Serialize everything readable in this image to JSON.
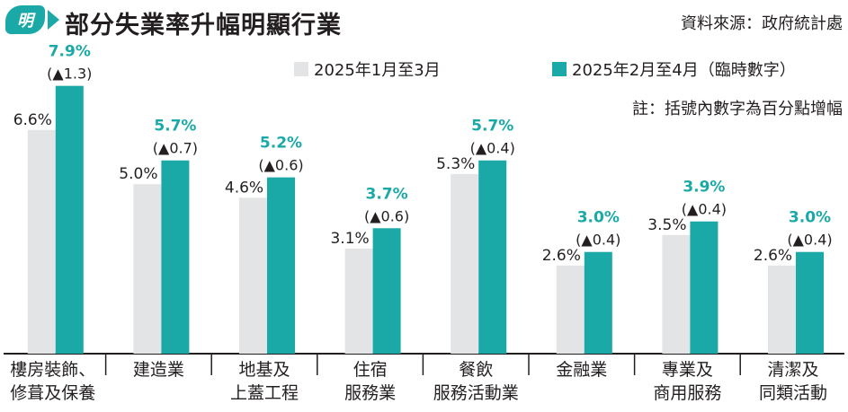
{
  "header": {
    "logo_text": "明",
    "title": "部分失業率升幅明顯行業",
    "source": "資料來源：政府統計處"
  },
  "legend": [
    {
      "label": "2025年1月至3月",
      "color": "#e3e4e5"
    },
    {
      "label": "2025年2月至4月（臨時數字）",
      "color": "#1aa9a7"
    }
  ],
  "note": "註：括號內數字為百分點增幅",
  "chart_data": {
    "type": "bar",
    "title": "部分失業率升幅明顯行業",
    "categories": [
      [
        "樓房裝飾、",
        "修葺及保養"
      ],
      [
        "建造業"
      ],
      [
        "地基及",
        "上蓋工程"
      ],
      [
        "住宿",
        "服務業"
      ],
      [
        "餐飲",
        "服務活動業"
      ],
      [
        "金融業"
      ],
      [
        "專業及",
        "商用服務"
      ],
      [
        "清潔及",
        "同類活動"
      ]
    ],
    "series": [
      {
        "name": "2025年1月至3月",
        "values": [
          6.6,
          5.0,
          4.6,
          3.1,
          5.3,
          2.6,
          3.5,
          2.6
        ],
        "color": "#e3e4e5"
      },
      {
        "name": "2025年2月至4月（臨時數字）",
        "values": [
          7.9,
          5.7,
          5.2,
          3.7,
          5.7,
          3.0,
          3.9,
          3.0
        ],
        "color": "#1aa9a7"
      }
    ],
    "value_labels": {
      "series1": [
        "6.6%",
        "5.0%",
        "4.6%",
        "3.1%",
        "5.3%",
        "2.6%",
        "3.5%",
        "2.6%"
      ],
      "series2": [
        "7.9%",
        "5.7%",
        "5.2%",
        "3.7%",
        "5.7%",
        "3.0%",
        "3.9%",
        "3.0%"
      ]
    },
    "changes": [
      "(▲1.3)",
      "(▲0.7)",
      "(▲0.6)",
      "(▲0.6)",
      "(▲0.4)",
      "(▲0.4)",
      "(▲0.4)",
      "(▲0.4)"
    ],
    "ylim": [
      0,
      8.5
    ],
    "grid": false,
    "legend_position": "top-right"
  }
}
